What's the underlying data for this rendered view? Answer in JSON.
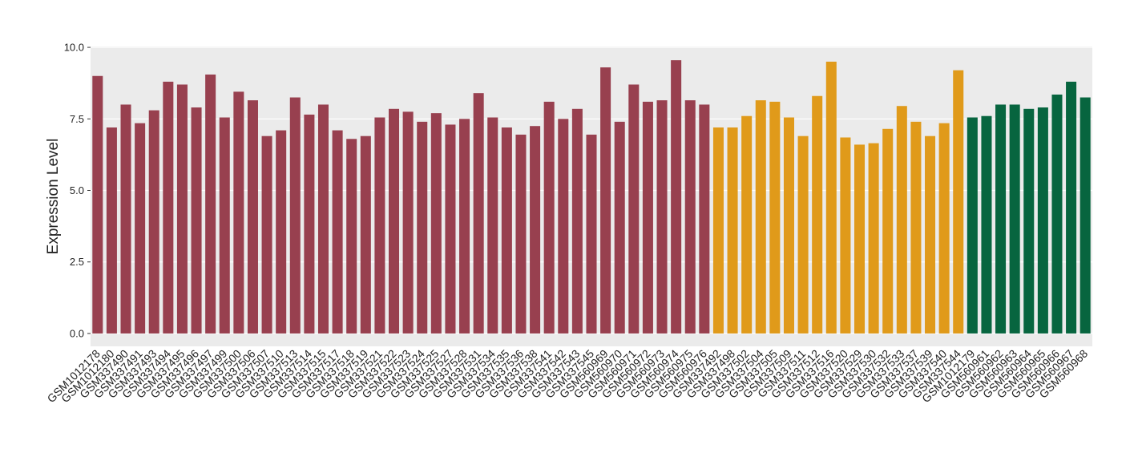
{
  "chart_data": {
    "type": "bar",
    "y_label": "Expression Level",
    "categories": [
      "GSM1012178",
      "GSM1012180",
      "GSM337490",
      "GSM337491",
      "GSM337493",
      "GSM337494",
      "GSM337495",
      "GSM337496",
      "GSM337497",
      "GSM337499",
      "GSM337500",
      "GSM337506",
      "GSM337507",
      "GSM337510",
      "GSM337513",
      "GSM337514",
      "GSM337515",
      "GSM337517",
      "GSM337518",
      "GSM337519",
      "GSM337521",
      "GSM337522",
      "GSM337523",
      "GSM337524",
      "GSM337525",
      "GSM337527",
      "GSM337528",
      "GSM337531",
      "GSM337534",
      "GSM337535",
      "GSM337536",
      "GSM337538",
      "GSM337541",
      "GSM337542",
      "GSM337543",
      "GSM337545",
      "GSM560969",
      "GSM560970",
      "GSM560971",
      "GSM560972",
      "GSM560973",
      "GSM560974",
      "GSM560975",
      "GSM560976",
      "GSM337492",
      "GSM337498",
      "GSM337502",
      "GSM337504",
      "GSM337505",
      "GSM337509",
      "GSM337511",
      "GSM337512",
      "GSM337516",
      "GSM337520",
      "GSM337529",
      "GSM337530",
      "GSM337532",
      "GSM337533",
      "GSM337537",
      "GSM337539",
      "GSM337540",
      "GSM337544",
      "GSM1012179",
      "GSM560961",
      "GSM560962",
      "GSM560963",
      "GSM560964",
      "GSM560965",
      "GSM560966",
      "GSM560967",
      "GSM560968"
    ],
    "values": [
      9.0,
      7.2,
      8.0,
      7.35,
      7.8,
      8.8,
      8.7,
      7.9,
      9.05,
      7.55,
      8.45,
      8.15,
      6.9,
      7.1,
      8.25,
      7.65,
      8.0,
      7.1,
      6.8,
      6.9,
      7.55,
      7.85,
      7.75,
      7.4,
      7.7,
      7.3,
      7.5,
      8.4,
      7.55,
      7.2,
      6.95,
      7.25,
      8.1,
      7.5,
      7.85,
      6.95,
      9.3,
      7.4,
      8.7,
      8.1,
      8.15,
      9.55,
      8.15,
      8.0,
      7.2,
      7.2,
      7.6,
      8.15,
      8.1,
      7.55,
      6.9,
      8.3,
      9.5,
      6.85,
      6.6,
      6.65,
      7.15,
      7.95,
      7.4,
      6.9,
      7.35,
      9.2,
      7.55,
      7.6,
      8.0,
      8.0,
      7.85,
      7.9,
      8.35,
      8.8,
      8.25
    ],
    "bar_colors": [
      "#98404f",
      "#98404f",
      "#98404f",
      "#98404f",
      "#98404f",
      "#98404f",
      "#98404f",
      "#98404f",
      "#98404f",
      "#98404f",
      "#98404f",
      "#98404f",
      "#98404f",
      "#98404f",
      "#98404f",
      "#98404f",
      "#98404f",
      "#98404f",
      "#98404f",
      "#98404f",
      "#98404f",
      "#98404f",
      "#98404f",
      "#98404f",
      "#98404f",
      "#98404f",
      "#98404f",
      "#98404f",
      "#98404f",
      "#98404f",
      "#98404f",
      "#98404f",
      "#98404f",
      "#98404f",
      "#98404f",
      "#98404f",
      "#98404f",
      "#98404f",
      "#98404f",
      "#98404f",
      "#98404f",
      "#98404f",
      "#98404f",
      "#98404f",
      "#e09a1a",
      "#e09a1a",
      "#e09a1a",
      "#e09a1a",
      "#e09a1a",
      "#e09a1a",
      "#e09a1a",
      "#e09a1a",
      "#e09a1a",
      "#e09a1a",
      "#e09a1a",
      "#e09a1a",
      "#e09a1a",
      "#e09a1a",
      "#e09a1a",
      "#e09a1a",
      "#e09a1a",
      "#e09a1a",
      "#07653f",
      "#07653f",
      "#07653f",
      "#07653f",
      "#07653f",
      "#07653f",
      "#07653f",
      "#07653f",
      "#07653f"
    ],
    "ylim": [
      -0.45,
      10.03
    ],
    "yticks": [
      {
        "value": 0,
        "label": "0.0"
      },
      2.5,
      {
        "value": 5,
        "label": "5.0"
      },
      7.5,
      {
        "value": 10,
        "label": "10.0"
      }
    ],
    "grid": true
  }
}
